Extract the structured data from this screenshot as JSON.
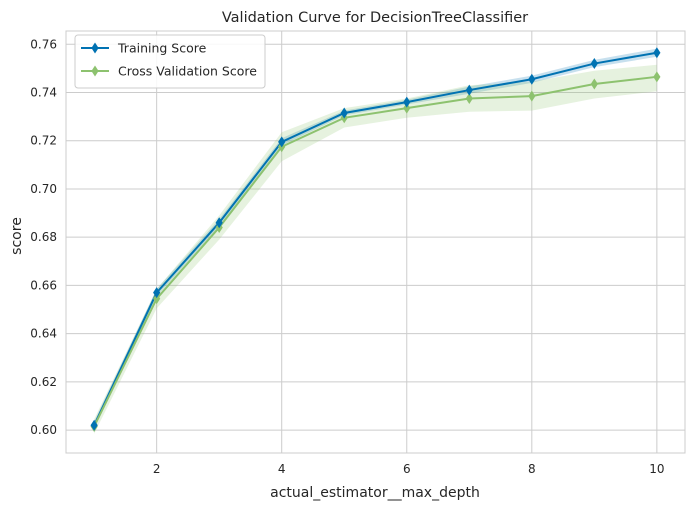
{
  "chart_data": {
    "type": "line",
    "title": "Validation Curve for DecisionTreeClassifier",
    "xlabel": "actual_estimator__max_depth",
    "ylabel": "score",
    "xlim": [
      0.55,
      10.45
    ],
    "ylim": [
      0.5905,
      0.7655
    ],
    "x_ticks": [
      2,
      4,
      6,
      8,
      10
    ],
    "y_ticks": [
      0.6,
      0.62,
      0.64,
      0.66,
      0.68,
      0.7,
      0.72,
      0.74,
      0.76
    ],
    "x_tick_labels": [
      "2",
      "4",
      "6",
      "8",
      "10"
    ],
    "y_tick_labels": [
      "0.60",
      "0.62",
      "0.64",
      "0.66",
      "0.68",
      "0.70",
      "0.72",
      "0.74",
      "0.76"
    ],
    "grid": true,
    "legend_position": "top-left",
    "x": [
      1,
      2,
      3,
      4,
      5,
      6,
      7,
      8,
      9,
      10
    ],
    "series": [
      {
        "name": "Training Score",
        "color": "#0072B2",
        "marker": "diamond",
        "values": [
          0.602,
          0.657,
          0.686,
          0.7195,
          0.7315,
          0.736,
          0.741,
          0.7455,
          0.752,
          0.7565
        ],
        "band_lower": [
          0.6005,
          0.6555,
          0.6845,
          0.718,
          0.7305,
          0.735,
          0.7395,
          0.744,
          0.7505,
          0.7548
        ],
        "band_upper": [
          0.6035,
          0.6585,
          0.6875,
          0.721,
          0.7325,
          0.737,
          0.7425,
          0.747,
          0.7535,
          0.7582
        ]
      },
      {
        "name": "Cross Validation Score",
        "color": "#8DC26F",
        "marker": "diamond",
        "values": [
          0.6015,
          0.6545,
          0.684,
          0.7175,
          0.7295,
          0.7335,
          0.7375,
          0.7385,
          0.7435,
          0.7465
        ],
        "band_lower": [
          0.5985,
          0.6505,
          0.679,
          0.7115,
          0.7255,
          0.7295,
          0.732,
          0.7325,
          0.7375,
          0.7405
        ],
        "band_upper": [
          0.6045,
          0.6585,
          0.689,
          0.7235,
          0.7335,
          0.7375,
          0.743,
          0.7445,
          0.749,
          0.7515
        ]
      }
    ]
  }
}
